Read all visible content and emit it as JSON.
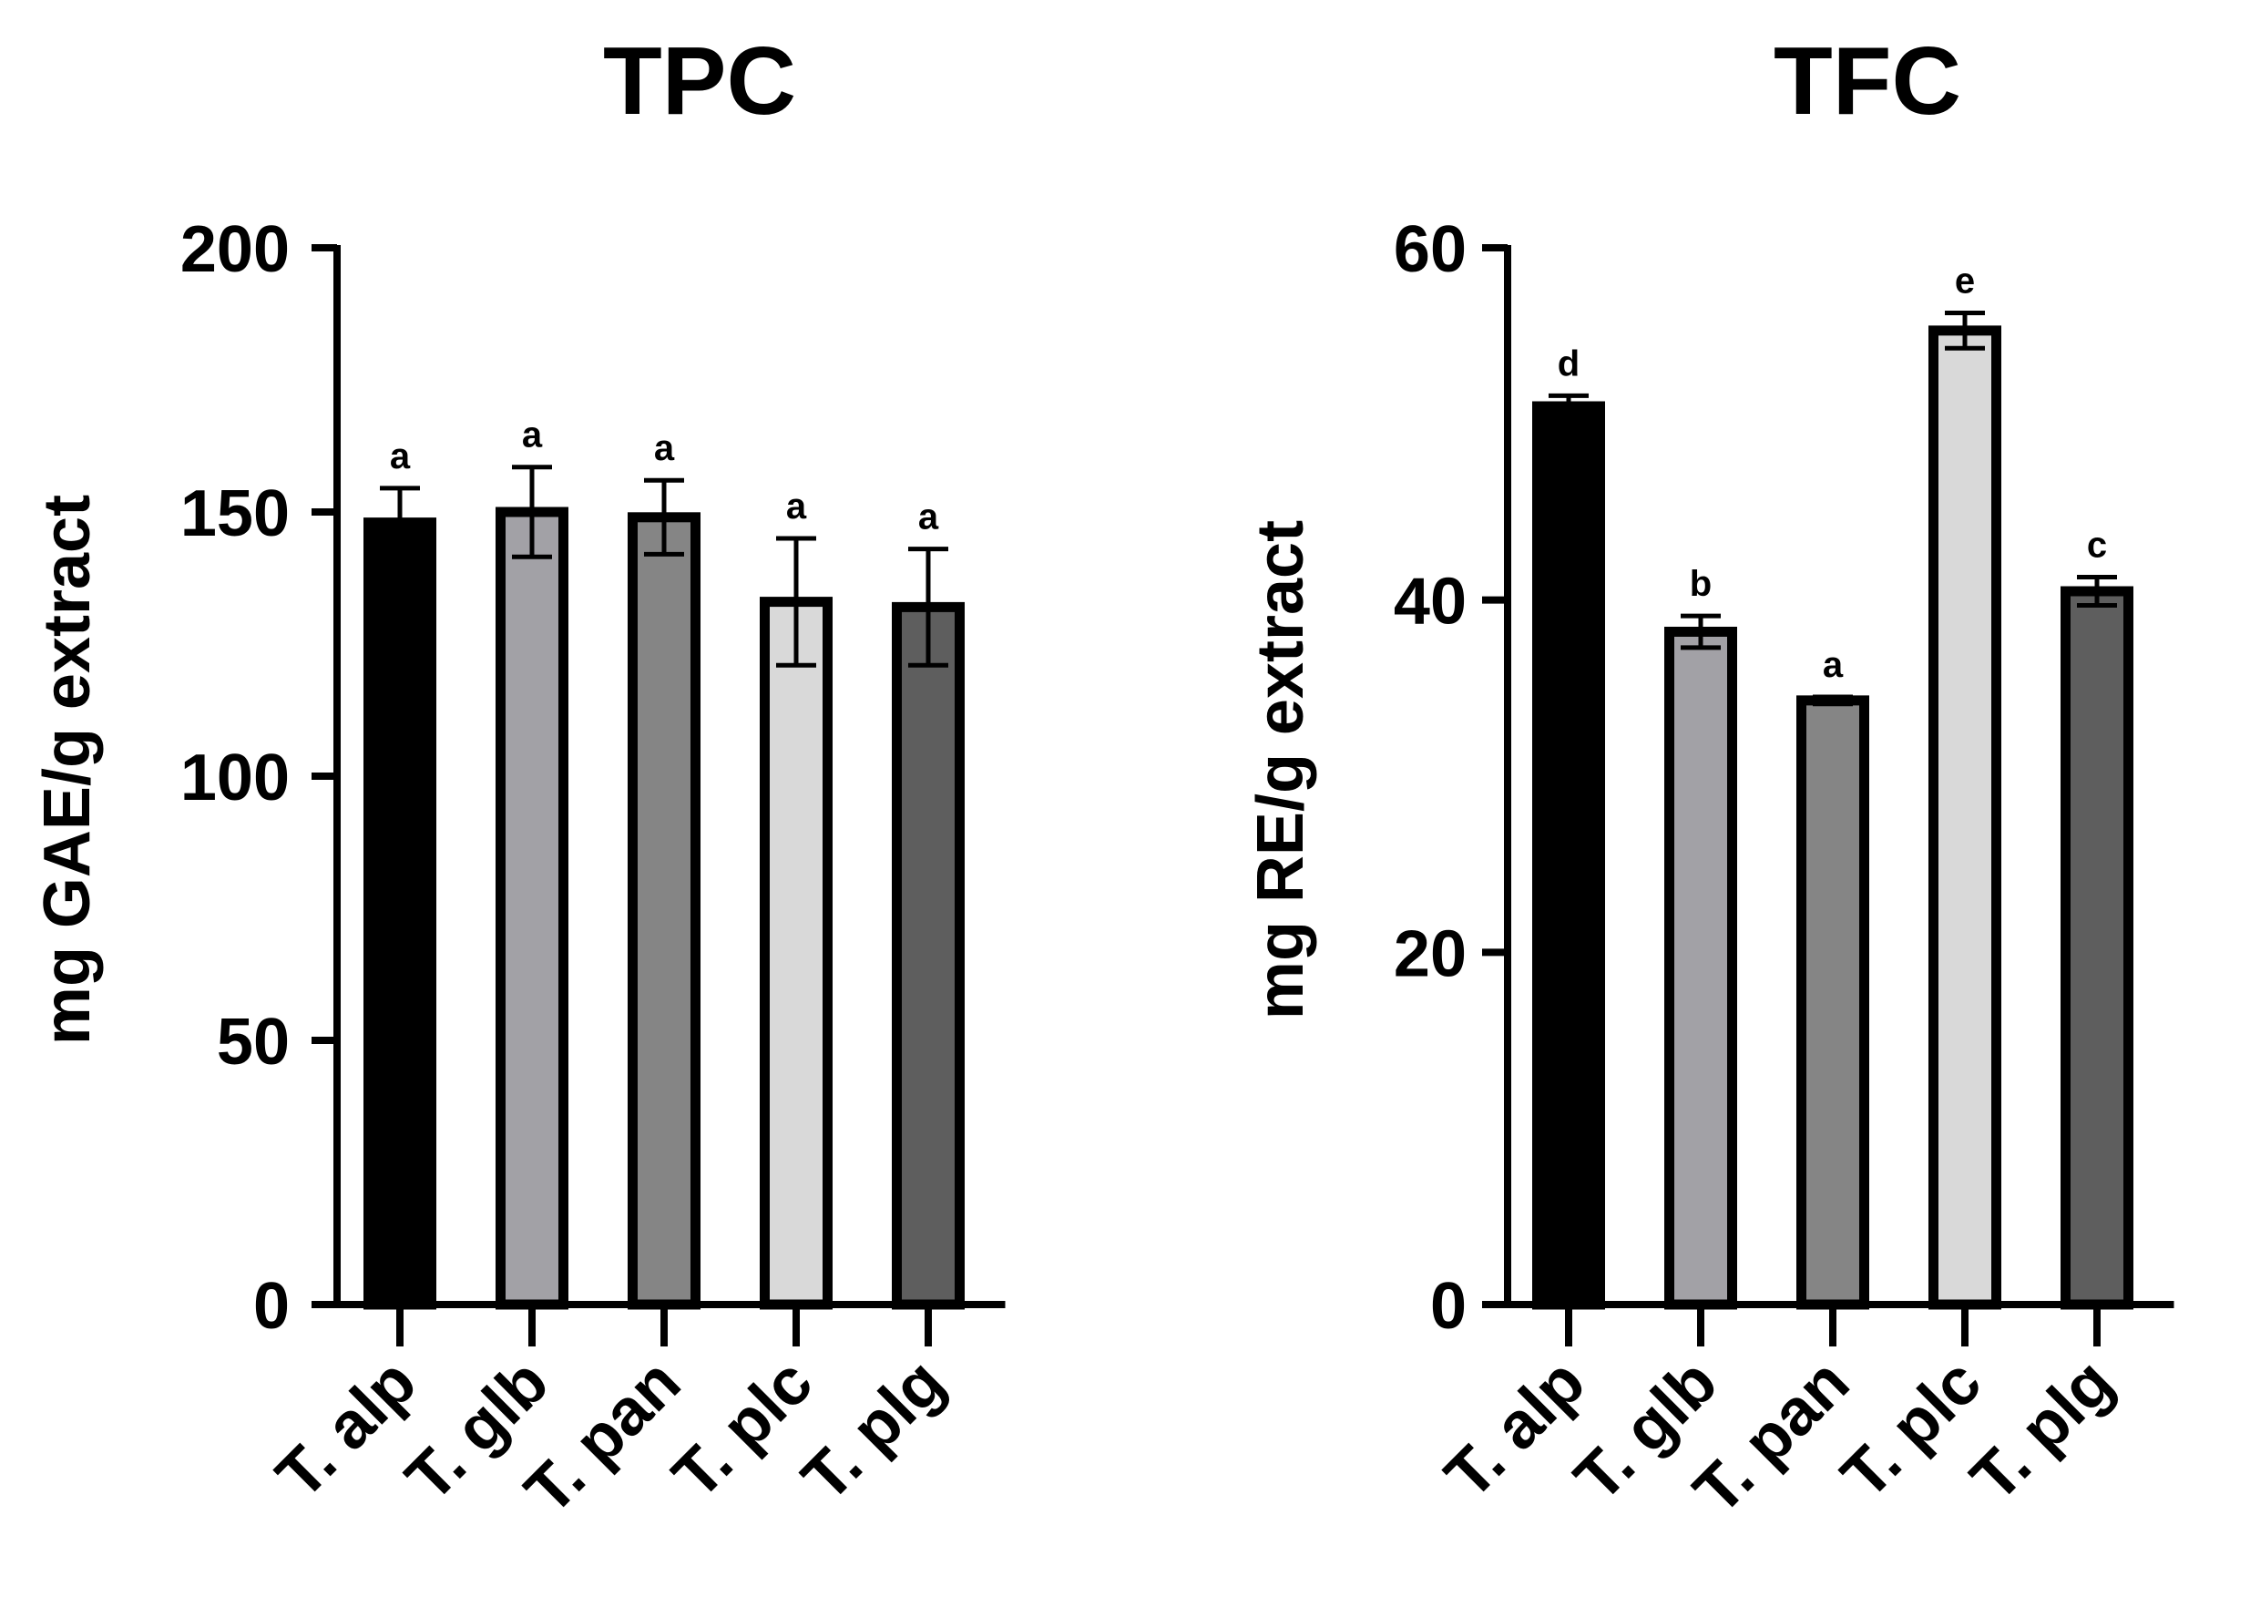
{
  "chart_data": [
    {
      "type": "bar",
      "title": "TPC",
      "xlabel": "",
      "ylabel": "mg GAE/g extract",
      "ylim": [
        0,
        200
      ],
      "yticks": [
        0,
        50,
        100,
        150,
        200
      ],
      "categories": [
        "T. alp",
        "T. glb",
        "T. pan",
        "T. plc",
        "T. plg"
      ],
      "values": [
        148,
        150,
        149,
        133,
        132
      ],
      "errors": [
        6.5,
        8.5,
        7,
        12,
        11
      ],
      "annotations": [
        "a",
        "a",
        "a",
        "a",
        "a"
      ],
      "colors": [
        "#000000",
        "#a2a1a6",
        "#858585",
        "#d9d9d9",
        "#5e5e5e"
      ],
      "grid": false
    },
    {
      "type": "bar",
      "title": "TFC",
      "xlabel": "",
      "ylabel": "mg RE/g extract",
      "ylim": [
        0,
        60
      ],
      "yticks": [
        0,
        20,
        40,
        60
      ],
      "categories": [
        "T. alp",
        "T. glb",
        "T. pan",
        "T. plc",
        "T. plg"
      ],
      "values": [
        51,
        38.2,
        34.3,
        55.3,
        40.5
      ],
      "errors": [
        0.6,
        0.9,
        0.2,
        1.0,
        0.8
      ],
      "annotations": [
        "d",
        "b",
        "a",
        "e",
        "c"
      ],
      "colors": [
        "#000000",
        "#a2a1a6",
        "#858585",
        "#d9d9d9",
        "#5e5e5e"
      ],
      "grid": false
    }
  ]
}
